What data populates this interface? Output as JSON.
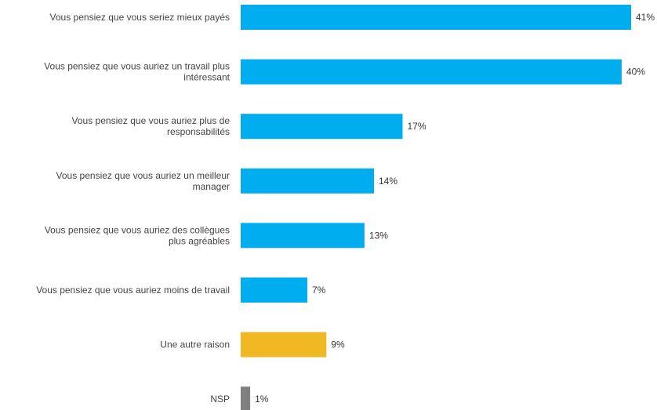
{
  "chart_data": {
    "type": "bar",
    "orientation": "horizontal",
    "categories": [
      "Vous pensiez que vous seriez mieux payés",
      "Vous pensiez que vous auriez un travail plus intéressant",
      "Vous pensiez que vous auriez plus de responsabilités",
      "Vous pensiez que vous auriez un meilleur manager",
      "Vous pensiez que vous auriez des collègues plus agréables",
      "Vous pensiez que vous auriez moins de travail",
      "Une autre raison",
      "NSP"
    ],
    "category_lines": [
      [
        "Vous pensiez que vous seriez mieux payés"
      ],
      [
        "Vous pensiez que vous auriez un travail plus",
        "intéressant"
      ],
      [
        "Vous pensiez que vous auriez plus de",
        "responsabilités"
      ],
      [
        "Vous pensiez que vous auriez un meilleur",
        "manager"
      ],
      [
        "Vous pensiez que vous auriez des collègues",
        "plus agréables"
      ],
      [
        "Vous pensiez que vous auriez moins de travail"
      ],
      [
        "Une autre raison"
      ],
      [
        "NSP"
      ]
    ],
    "values": [
      41,
      40,
      17,
      14,
      13,
      7,
      9,
      1
    ],
    "value_labels": [
      "41%",
      "40%",
      "17%",
      "14%",
      "13%",
      "7%",
      "9%",
      "1%"
    ],
    "bar_colors": [
      "#00aeef",
      "#00aeef",
      "#00aeef",
      "#00aeef",
      "#00aeef",
      "#00aeef",
      "#f0b823",
      "#808080"
    ],
    "xlim": [
      0,
      41
    ],
    "grid": false,
    "legend": "none"
  }
}
